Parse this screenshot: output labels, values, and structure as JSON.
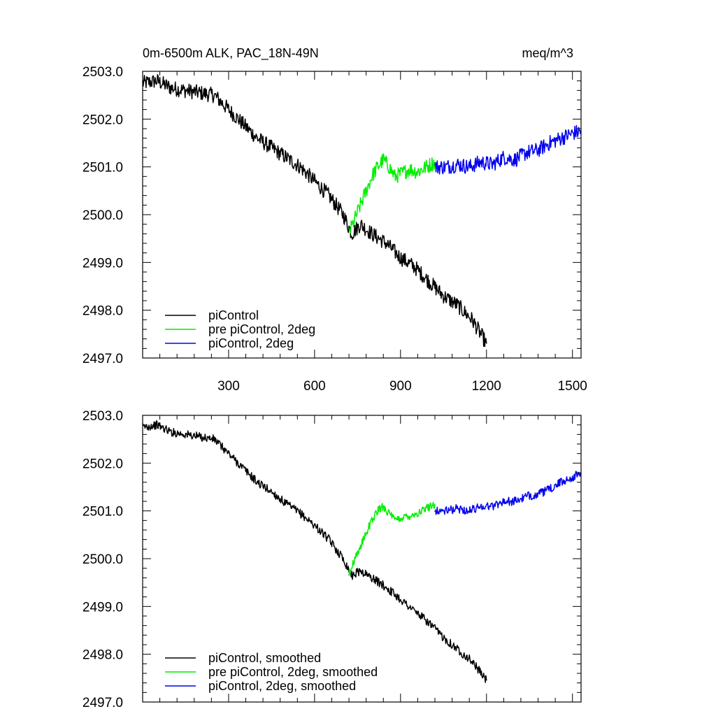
{
  "chart_data": [
    {
      "type": "line",
      "title": "0m-6500m ALK, PAC_18N-49N",
      "units": "meq/m^3",
      "xlim": [
        0,
        1530
      ],
      "ylim": [
        2497.0,
        2503.0
      ],
      "xticks": [
        300,
        600,
        900,
        1200,
        1500
      ],
      "xtick_labels": [
        "300",
        "600",
        "900",
        "1200",
        "1500"
      ],
      "yticks": [
        2497.0,
        2498.0,
        2499.0,
        2500.0,
        2501.0,
        2502.0,
        2503.0
      ],
      "ytick_labels": [
        "2497.0",
        "2498.0",
        "2499.0",
        "2500.0",
        "2501.0",
        "2502.0",
        "2503.0"
      ],
      "legend": [
        "piControl",
        "pre piControl, 2deg",
        "piControl, 2deg"
      ],
      "legend_position": "bottom-left",
      "series": [
        {
          "name": "piControl",
          "color": "#000000",
          "x": [
            0,
            50,
            100,
            150,
            200,
            250,
            300,
            350,
            400,
            450,
            500,
            550,
            600,
            650,
            700,
            730,
            760,
            800,
            850,
            900,
            950,
            1000,
            1050,
            1100,
            1150,
            1200
          ],
          "y": [
            2502.75,
            2502.8,
            2502.65,
            2502.6,
            2502.55,
            2502.5,
            2502.2,
            2501.9,
            2501.6,
            2501.4,
            2501.2,
            2501.0,
            2500.7,
            2500.4,
            2500.0,
            2499.6,
            2499.8,
            2499.6,
            2499.4,
            2499.1,
            2498.9,
            2498.6,
            2498.3,
            2498.1,
            2497.8,
            2497.3
          ]
        },
        {
          "name": "pre piControl, 2deg",
          "color": "#00ee00",
          "x": [
            720,
            740,
            760,
            780,
            800,
            820,
            840,
            860,
            880,
            900,
            930,
            960,
            990,
            1020
          ],
          "y": [
            2499.6,
            2499.9,
            2500.2,
            2500.5,
            2500.8,
            2501.0,
            2501.15,
            2501.0,
            2500.8,
            2500.85,
            2500.95,
            2500.9,
            2501.0,
            2501.1
          ]
        },
        {
          "name": "piControl, 2deg",
          "color": "#0000ee",
          "x": [
            1020,
            1060,
            1100,
            1140,
            1180,
            1220,
            1260,
            1300,
            1340,
            1380,
            1420,
            1460,
            1500,
            1530
          ],
          "y": [
            2501.0,
            2501.0,
            2501.05,
            2501.0,
            2501.1,
            2501.05,
            2501.2,
            2501.15,
            2501.3,
            2501.35,
            2501.5,
            2501.6,
            2501.7,
            2501.75
          ]
        }
      ]
    },
    {
      "type": "line",
      "xlim": [
        0,
        1530
      ],
      "ylim": [
        2497.0,
        2503.0
      ],
      "yticks": [
        2497.0,
        2498.0,
        2499.0,
        2500.0,
        2501.0,
        2502.0,
        2503.0
      ],
      "ytick_labels": [
        "2497.0",
        "2498.0",
        "2499.0",
        "2500.0",
        "2501.0",
        "2502.0",
        "2503.0"
      ],
      "legend": [
        "piControl, smoothed",
        "pre piControl, 2deg, smoothed",
        "piControl, 2deg, smoothed"
      ],
      "legend_position": "bottom-left",
      "series": [
        {
          "name": "piControl, smoothed",
          "color": "#000000",
          "x": [
            0,
            50,
            100,
            150,
            200,
            250,
            300,
            350,
            400,
            450,
            500,
            550,
            600,
            650,
            700,
            730,
            760,
            800,
            850,
            900,
            950,
            1000,
            1050,
            1100,
            1150,
            1200
          ],
          "y": [
            2502.75,
            2502.8,
            2502.65,
            2502.6,
            2502.55,
            2502.5,
            2502.2,
            2501.9,
            2501.6,
            2501.4,
            2501.15,
            2500.95,
            2500.7,
            2500.4,
            2500.0,
            2499.65,
            2499.75,
            2499.6,
            2499.4,
            2499.15,
            2498.9,
            2498.65,
            2498.35,
            2498.1,
            2497.85,
            2497.45
          ]
        },
        {
          "name": "pre piControl, 2deg, smoothed",
          "color": "#00ee00",
          "x": [
            720,
            740,
            760,
            780,
            800,
            820,
            840,
            860,
            880,
            900,
            930,
            960,
            990,
            1020
          ],
          "y": [
            2499.7,
            2499.95,
            2500.25,
            2500.55,
            2500.8,
            2501.0,
            2501.1,
            2500.95,
            2500.8,
            2500.85,
            2500.9,
            2500.95,
            2501.05,
            2501.15
          ]
        },
        {
          "name": "piControl, 2deg, smoothed",
          "color": "#0000ee",
          "x": [
            1020,
            1060,
            1100,
            1140,
            1180,
            1220,
            1260,
            1300,
            1340,
            1380,
            1420,
            1460,
            1500,
            1530
          ],
          "y": [
            2501.0,
            2501.0,
            2501.05,
            2501.0,
            2501.1,
            2501.1,
            2501.2,
            2501.2,
            2501.3,
            2501.35,
            2501.45,
            2501.6,
            2501.7,
            2501.8
          ]
        }
      ]
    }
  ]
}
